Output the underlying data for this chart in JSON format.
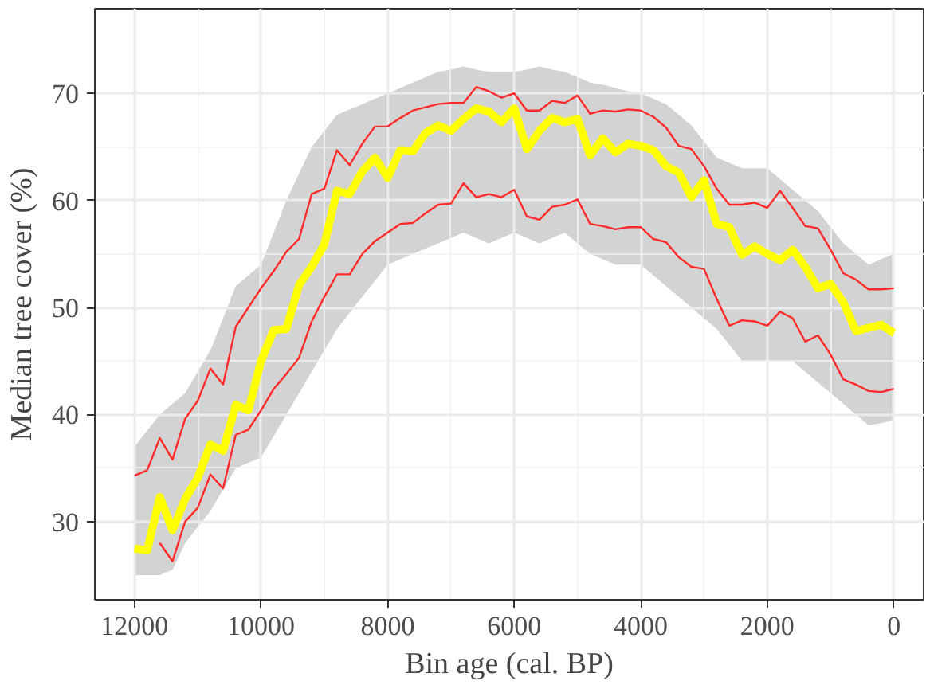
{
  "chart_data": {
    "type": "line",
    "xlabel": "Bin age (cal. BP)",
    "ylabel": "Median tree cover (%)",
    "xlim": [
      12627,
      -470
    ],
    "ylim": [
      22.7,
      77.9
    ],
    "xticks": [
      12000,
      10000,
      8000,
      6000,
      4000,
      2000,
      0
    ],
    "yticks": [
      30,
      40,
      50,
      60,
      70
    ],
    "grid": true,
    "x": [
      12000,
      11800,
      11600,
      11400,
      11200,
      11000,
      10800,
      10600,
      10400,
      10200,
      10000,
      9800,
      9600,
      9400,
      9200,
      9000,
      8800,
      8600,
      8400,
      8200,
      8000,
      7800,
      7600,
      7400,
      7200,
      7000,
      6800,
      6600,
      6400,
      6200,
      6000,
      5800,
      5600,
      5400,
      5200,
      5000,
      4800,
      4600,
      4400,
      4200,
      4000,
      3800,
      3600,
      3400,
      3200,
      3000,
      2800,
      2600,
      2400,
      2200,
      2000,
      1800,
      1600,
      1400,
      1200,
      1000,
      800,
      600,
      400,
      200,
      0
    ],
    "series": [
      {
        "color": "#ff2a2a",
        "values": [
          34.3,
          34.8,
          37.8,
          35.8,
          39.6,
          41.3,
          44.3,
          42.8,
          48.2,
          50.0,
          51.8,
          53.4,
          55.2,
          56.4,
          60.6,
          61.1,
          64.7,
          63.3,
          65.3,
          66.9,
          66.9,
          67.7,
          68.4,
          68.7,
          69.0,
          69.1,
          69.1,
          70.6,
          70.2,
          69.6,
          70.0,
          68.4,
          68.4,
          69.3,
          69.1,
          69.8,
          68.1,
          68.4,
          68.3,
          68.5,
          68.4,
          67.8,
          66.8,
          65.1,
          64.8,
          63.2,
          61.1,
          59.6,
          59.6,
          59.8,
          59.3,
          60.9,
          59.3,
          57.6,
          57.4,
          55.4,
          53.2,
          52.6,
          51.7,
          51.7,
          51.8
        ]
      },
      {
        "color": "#ff2a2a",
        "values": [
          null,
          null,
          28.0,
          26.3,
          30.0,
          31.3,
          34.4,
          33.1,
          38.1,
          38.6,
          40.4,
          42.4,
          43.8,
          45.3,
          48.7,
          51.0,
          53.1,
          53.1,
          55.0,
          56.2,
          57.0,
          57.8,
          57.9,
          58.8,
          59.6,
          59.7,
          61.6,
          60.3,
          60.6,
          60.3,
          61.0,
          58.5,
          58.2,
          59.4,
          59.6,
          60.1,
          57.8,
          57.6,
          57.3,
          57.5,
          57.5,
          56.4,
          56.1,
          54.7,
          53.8,
          53.6,
          50.8,
          48.3,
          48.8,
          48.7,
          48.3,
          49.6,
          49.0,
          46.8,
          47.4,
          45.6,
          43.3,
          42.8,
          42.2,
          42.1,
          42.4
        ]
      },
      {
        "color": "#ffff00",
        "values": [
          27.5,
          27.3,
          32.3,
          29.2,
          32.1,
          34.1,
          37.2,
          36.6,
          40.9,
          40.4,
          45.0,
          47.9,
          48.0,
          52.1,
          53.8,
          55.9,
          60.9,
          60.6,
          62.7,
          64.0,
          62.1,
          64.7,
          64.6,
          66.3,
          67.0,
          66.5,
          67.6,
          68.6,
          68.3,
          67.3,
          68.6,
          64.8,
          66.5,
          67.7,
          67.3,
          67.6,
          64.2,
          65.8,
          64.5,
          65.3,
          65.1,
          64.7,
          63.2,
          62.6,
          60.3,
          61.9,
          57.8,
          57.5,
          54.9,
          55.7,
          55.0,
          54.4,
          55.4,
          53.8,
          51.8,
          52.2,
          50.5,
          47.8,
          48.1,
          48.4,
          47.6
        ],
        "upper": [
          37,
          38.5,
          40,
          41,
          42,
          44,
          46,
          49,
          52,
          53,
          54,
          57,
          60,
          62.5,
          65,
          66.5,
          68,
          68.5,
          69,
          69.5,
          70,
          70.5,
          71,
          71.5,
          72,
          72.2,
          72.5,
          72.2,
          72,
          72,
          72,
          72.2,
          72.5,
          72.2,
          72,
          71.5,
          71,
          70.8,
          70.5,
          70.2,
          70,
          69.5,
          69,
          68,
          67,
          65.5,
          64,
          63.5,
          63,
          63,
          63,
          62,
          61,
          60,
          59,
          57.5,
          56,
          55,
          54,
          54.5,
          55
        ],
        "lower": [
          25,
          25,
          25,
          25.5,
          28,
          29.5,
          31,
          33,
          35,
          35.5,
          36,
          38,
          40,
          42,
          44,
          46,
          48,
          49.5,
          51,
          52.5,
          54,
          54.5,
          55,
          55.5,
          56,
          56.5,
          57,
          56.5,
          56,
          56.5,
          57,
          56.5,
          56,
          56.5,
          57,
          56,
          55,
          54.5,
          54,
          54,
          54,
          53,
          52,
          51,
          50,
          49,
          48,
          46.5,
          45,
          45,
          45,
          45,
          45,
          44,
          43,
          42,
          41,
          40,
          39,
          39.2,
          39.5
        ]
      }
    ]
  }
}
